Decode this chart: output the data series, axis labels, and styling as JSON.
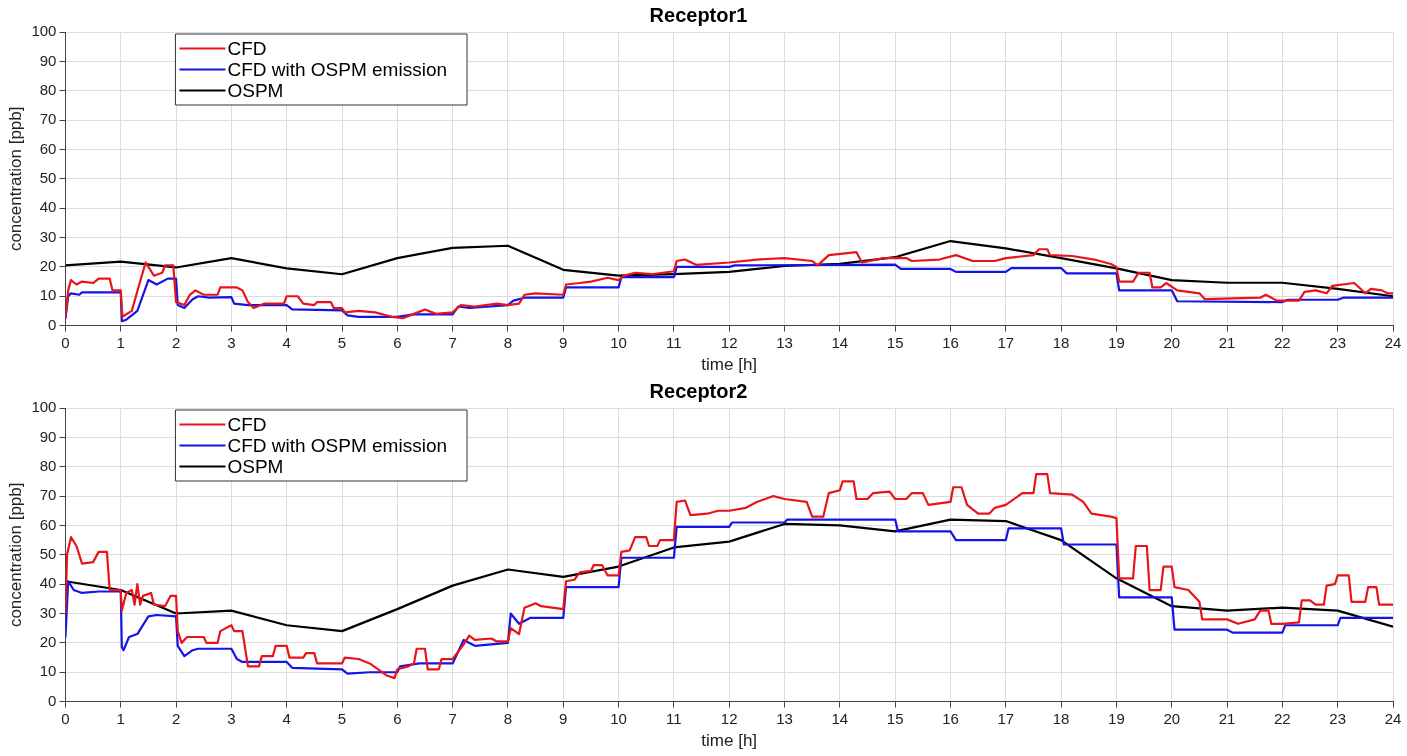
{
  "chart_data": [
    {
      "type": "line",
      "title": "Receptor1",
      "xlabel": "time [h]",
      "ylabel": "concentration [ppb]",
      "xlim": [
        0,
        24
      ],
      "xticks": [
        0,
        1,
        2,
        3,
        4,
        5,
        6,
        7,
        8,
        9,
        10,
        11,
        12,
        13,
        14,
        15,
        16,
        17,
        18,
        19,
        20,
        21,
        22,
        23,
        24
      ],
      "ylim": [
        0,
        100
      ],
      "yticks": [
        0,
        10,
        20,
        30,
        40,
        50,
        60,
        70,
        80,
        90,
        100
      ],
      "grid": true,
      "legend": "top left",
      "marker": "none",
      "line_style": "solid",
      "series": [
        {
          "name": "CFD",
          "color": "#e8141a",
          "x": [
            0,
            0.05,
            0.1,
            0.2,
            0.3,
            0.5,
            0.6,
            0.8,
            0.85,
            1,
            1.03,
            1.2,
            1.35,
            1.45,
            1.6,
            1.75,
            1.8,
            1.95,
            2,
            2.15,
            2.25,
            2.35,
            2.5,
            2.75,
            2.8,
            3.1,
            3.2,
            3.3,
            3.4,
            3.6,
            3.95,
            4,
            4.2,
            4.3,
            4.5,
            4.55,
            4.8,
            4.85,
            5,
            5.05,
            5.3,
            5.6,
            5.9,
            6.1,
            6.3,
            6.5,
            6.7,
            7,
            7.15,
            7.4,
            7.8,
            8,
            8.2,
            8.3,
            8.5,
            9,
            9.05,
            9.3,
            9.5,
            9.8,
            10,
            10.1,
            10.3,
            10.6,
            11,
            11.05,
            11.2,
            11.4,
            12,
            12.5,
            13,
            13.5,
            13.6,
            13.8,
            14.3,
            14.4,
            14.8,
            15.2,
            15.3,
            15.8,
            16.1,
            16.4,
            16.8,
            17,
            17.5,
            17.6,
            17.75,
            17.8,
            18.2,
            18.6,
            18.9,
            19,
            19.05,
            19.3,
            19.4,
            19.6,
            19.65,
            19.8,
            19.9,
            20.1,
            20.5,
            20.6,
            21.6,
            21.7,
            21.9,
            22.3,
            22.4,
            22.6,
            22.8,
            22.9,
            23.3,
            23.5,
            23.6,
            23.8,
            23.9,
            24
          ],
          "values": [
            3,
            12,
            15.5,
            14,
            15,
            14.5,
            16,
            16,
            12,
            12,
            3,
            5,
            15,
            21.5,
            17,
            18,
            20.5,
            20.5,
            8,
            7,
            10.5,
            12,
            10.5,
            10.5,
            13,
            13,
            12,
            8,
            6,
            7.5,
            7.5,
            10,
            10,
            7.5,
            7,
            8,
            8,
            6,
            6,
            4.5,
            5,
            4.5,
            3,
            2.5,
            4,
            5.5,
            4,
            4.5,
            7,
            6.5,
            7.5,
            7,
            7.5,
            10.5,
            11,
            10.5,
            14,
            14.5,
            15,
            16.3,
            15.5,
            17,
            18,
            17.5,
            18.5,
            22,
            22.5,
            20.7,
            21.5,
            22.5,
            23,
            22,
            20.5,
            24,
            25,
            21.5,
            23,
            23,
            22,
            22.5,
            24,
            22,
            22,
            23,
            24,
            26,
            26,
            24,
            23.7,
            22.5,
            21,
            20,
            15,
            15,
            18,
            18,
            13,
            13,
            14.5,
            12,
            11,
            9,
            9.5,
            10.5,
            8.5,
            8.5,
            11.5,
            12,
            11,
            13.5,
            14.5,
            11,
            12.5,
            12,
            11,
            11
          ]
        },
        {
          "name": "CFD with OSPM emission",
          "color": "#1414e6",
          "x": [
            0,
            0.05,
            0.1,
            0.25,
            0.3,
            1,
            1.02,
            1.1,
            1.3,
            1.5,
            1.65,
            1.85,
            2,
            2.03,
            2.15,
            2.3,
            2.4,
            2.6,
            3,
            3.05,
            3.3,
            4,
            4.1,
            5,
            5.1,
            5.3,
            6,
            6.3,
            7,
            7.1,
            7.3,
            8,
            8.1,
            8.3,
            9,
            9.05,
            10,
            10.05,
            11,
            11.05,
            12,
            12.1,
            15,
            15.1,
            16,
            16.1,
            17,
            17.1,
            18,
            18.1,
            19,
            19.05,
            20,
            20.1,
            22,
            22.1,
            23,
            23.1,
            24
          ],
          "values": [
            2.5,
            10,
            11,
            10.5,
            11.3,
            11.3,
            1.5,
            2,
            5,
            15.5,
            14,
            16,
            16,
            7,
            6,
            9,
            10,
            9.5,
            9.7,
            7.5,
            7,
            7,
            5.5,
            5.2,
            3.5,
            3,
            3,
            3.8,
            3.8,
            6.5,
            6,
            7,
            8.5,
            9.5,
            9.5,
            13,
            13,
            16.5,
            16.5,
            20,
            20,
            20.5,
            20.8,
            19.3,
            19.3,
            18.3,
            18.3,
            19.6,
            19.6,
            17.8,
            17.8,
            12,
            12,
            8.3,
            8,
            8.8,
            8.8,
            9.5,
            9.5
          ]
        },
        {
          "name": "OSPM",
          "color": "#000000",
          "x": [
            0,
            1,
            2,
            3,
            4,
            5,
            6,
            7,
            8,
            9,
            10,
            11,
            12,
            13,
            14,
            15,
            16,
            17,
            18,
            19,
            20,
            21,
            22,
            23,
            24
          ],
          "values": [
            20.5,
            21.8,
            19.8,
            23,
            19.5,
            17.5,
            23,
            26.5,
            27.2,
            19,
            17,
            17.5,
            18.3,
            20.3,
            21,
            23.3,
            28.8,
            26.3,
            23,
            19.5,
            15.5,
            14.6,
            14.6,
            12.5,
            10
          ]
        }
      ]
    },
    {
      "type": "line",
      "title": "Receptor2",
      "xlabel": "time [h]",
      "ylabel": "concentration [ppb]",
      "xlim": [
        0,
        24
      ],
      "xticks": [
        0,
        1,
        2,
        3,
        4,
        5,
        6,
        7,
        8,
        9,
        10,
        11,
        12,
        13,
        14,
        15,
        16,
        17,
        18,
        19,
        20,
        21,
        22,
        23,
        24
      ],
      "ylim": [
        0,
        100
      ],
      "yticks": [
        0,
        10,
        20,
        30,
        40,
        50,
        60,
        70,
        80,
        90,
        100
      ],
      "grid": true,
      "legend": "top left",
      "marker": "none",
      "line_style": "solid",
      "series": [
        {
          "name": "CFD",
          "color": "#e8141a",
          "x": [
            0,
            0.03,
            0.1,
            0.2,
            0.3,
            0.5,
            0.6,
            0.75,
            0.8,
            1,
            1.02,
            1.1,
            1.2,
            1.25,
            1.3,
            1.35,
            1.4,
            1.55,
            1.6,
            1.8,
            1.9,
            2,
            2.03,
            2.1,
            2.2,
            2.5,
            2.55,
            2.75,
            2.8,
            3,
            3.05,
            3.2,
            3.3,
            3.5,
            3.55,
            3.75,
            3.8,
            4,
            4.05,
            4.3,
            4.35,
            4.5,
            4.55,
            5,
            5.05,
            5.3,
            5.5,
            5.8,
            5.95,
            6,
            6.2,
            6.3,
            6.35,
            6.5,
            6.55,
            6.75,
            6.8,
            7,
            7.2,
            7.3,
            7.4,
            7.7,
            7.8,
            8,
            8.05,
            8.2,
            8.3,
            8.5,
            8.6,
            9,
            9.05,
            9.2,
            9.3,
            9.5,
            9.55,
            9.7,
            9.8,
            10,
            10.05,
            10.2,
            10.3,
            10.5,
            10.55,
            10.7,
            10.75,
            11,
            11.05,
            11.2,
            11.3,
            11.6,
            11.8,
            12,
            12.3,
            12.5,
            12.8,
            13,
            13.4,
            13.5,
            13.7,
            13.8,
            14,
            14.05,
            14.25,
            14.3,
            14.5,
            14.6,
            14.9,
            15,
            15.2,
            15.3,
            15.5,
            15.6,
            16,
            16.05,
            16.2,
            16.3,
            16.5,
            16.7,
            16.8,
            17,
            17.3,
            17.5,
            17.55,
            17.75,
            17.8,
            18.2,
            18.4,
            18.55,
            18.9,
            19,
            19.05,
            19.3,
            19.35,
            19.55,
            19.6,
            19.8,
            19.85,
            20,
            20.05,
            20.3,
            20.5,
            20.55,
            21,
            21.2,
            21.5,
            21.6,
            21.75,
            21.8,
            22,
            22.3,
            22.35,
            22.5,
            22.6,
            22.75,
            22.8,
            22.95,
            23,
            23.2,
            23.25,
            23.5,
            23.55,
            23.7,
            23.75,
            24
          ],
          "values": [
            30,
            50,
            56,
            53,
            47,
            47.5,
            51,
            51,
            38,
            38,
            31,
            37,
            38,
            33,
            40,
            33,
            36,
            37,
            33,
            32.5,
            36,
            36,
            24,
            20,
            22,
            22,
            20,
            20,
            24,
            26,
            24,
            24,
            12,
            12,
            15.5,
            15.5,
            19,
            19,
            15,
            15,
            16.5,
            16.5,
            13,
            13,
            15,
            14.5,
            13,
            9,
            8,
            11,
            12,
            13,
            18,
            18,
            11,
            11,
            14.5,
            14.5,
            19.5,
            22.5,
            21,
            21.5,
            20.5,
            20.5,
            25,
            23,
            32,
            33.5,
            32.5,
            31.5,
            41,
            41.5,
            44,
            44.5,
            46.5,
            46.5,
            43,
            43,
            51,
            51.5,
            56,
            56,
            53,
            53,
            55,
            55,
            68,
            68.5,
            63.5,
            64,
            65,
            65,
            66,
            68,
            70,
            69,
            68,
            63,
            63,
            71,
            72,
            75,
            75,
            69,
            69,
            71,
            71.5,
            69,
            69,
            71,
            71,
            67,
            68,
            73,
            73,
            67,
            64,
            64,
            66,
            67,
            71,
            71,
            77.5,
            77.5,
            71,
            70.5,
            68,
            64,
            63,
            62.5,
            42,
            42,
            53,
            53,
            38,
            38,
            46,
            46,
            39,
            38,
            34,
            28,
            28,
            26.5,
            28,
            31,
            31,
            26.5,
            26.5,
            27,
            34.5,
            34.5,
            33,
            33,
            39.5,
            40,
            43,
            43,
            34,
            34,
            39,
            39,
            33,
            33
          ]
        },
        {
          "name": "CFD with OSPM emission",
          "color": "#1414e6",
          "x": [
            0,
            0.05,
            0.15,
            0.3,
            0.6,
            1,
            1.02,
            1.05,
            1.15,
            1.3,
            1.5,
            1.65,
            2,
            2.03,
            2.15,
            2.3,
            2.4,
            3,
            3.1,
            3.2,
            4,
            4.1,
            5,
            5.1,
            5.5,
            6,
            6.05,
            6.4,
            7,
            7.05,
            7.2,
            7.4,
            8,
            8.05,
            8.2,
            8.4,
            9,
            9.05,
            10,
            10.05,
            11,
            11.05,
            12,
            12.05,
            13,
            13.05,
            15,
            15.05,
            16,
            16.1,
            17,
            17.05,
            18,
            18.05,
            19,
            19.05,
            20,
            20.05,
            21,
            21.1,
            22,
            22.05,
            23,
            23.05,
            24
          ],
          "values": [
            22,
            41,
            38,
            37,
            37.5,
            37.5,
            18.5,
            17.5,
            22,
            23,
            29,
            29.5,
            29,
            19,
            15.5,
            17.5,
            18,
            18,
            14.5,
            13.5,
            13.5,
            11.5,
            11,
            9.5,
            10,
            10,
            12,
            13,
            13,
            15,
            21,
            19,
            20,
            30,
            26.5,
            28.5,
            28.5,
            39,
            39,
            49,
            49,
            59.5,
            59.5,
            61,
            61,
            62,
            62,
            58,
            58,
            55,
            55,
            59,
            59,
            53.5,
            53.5,
            35.5,
            35.5,
            24.5,
            24.5,
            23.5,
            23.5,
            26,
            26,
            28.5,
            28.5
          ]
        },
        {
          "name": "OSPM",
          "color": "#000000",
          "x": [
            0,
            1,
            2,
            3,
            4,
            5,
            6,
            7,
            8,
            9,
            10,
            11,
            12,
            13,
            14,
            15,
            16,
            17,
            18,
            19,
            20,
            21,
            22,
            23,
            24
          ],
          "values": [
            41,
            38,
            30,
            31,
            26,
            24,
            31.5,
            39.5,
            45,
            42.5,
            46,
            52.5,
            54.5,
            60.5,
            60,
            58,
            62,
            61.5,
            55,
            42,
            32.5,
            31,
            32,
            31,
            25.5
          ]
        }
      ]
    }
  ]
}
